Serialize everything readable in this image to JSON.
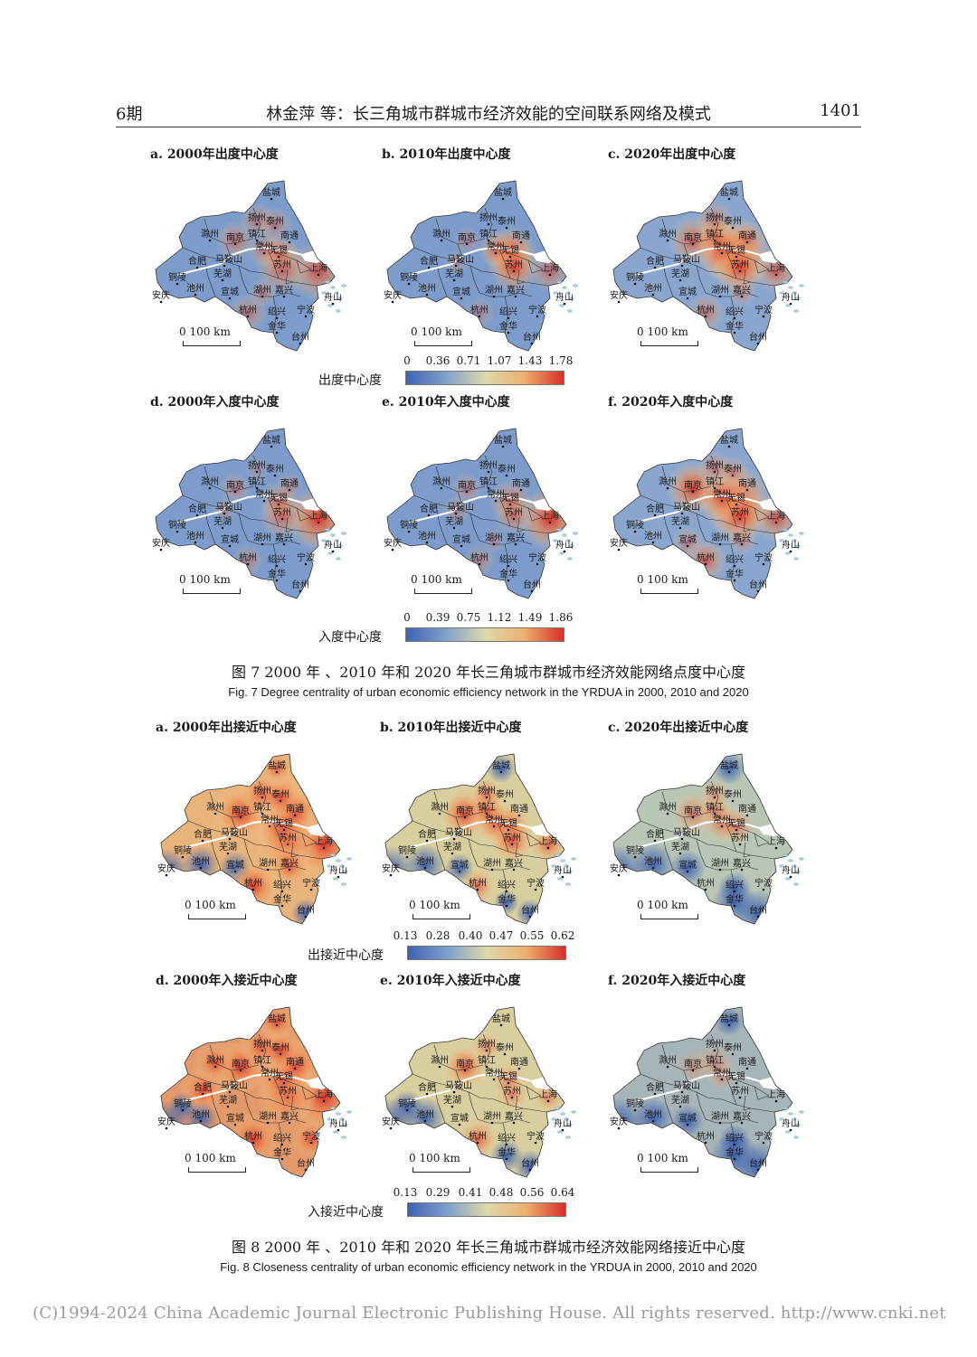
{
  "header": {
    "issue": "6期",
    "title": "林金萍 等：长三角城市群城市经济效能的空间联系网络及模式",
    "page": "1401"
  },
  "scale_label": "0   100 km",
  "cities": [
    "盐城",
    "扬州",
    "泰州",
    "滁州",
    "南京",
    "镇江",
    "南通",
    "常州",
    "无锡",
    "合肥",
    "马鞍山",
    "苏州",
    "上海",
    "铜陵",
    "芜湖",
    "池州",
    "宣城",
    "湖州",
    "嘉兴",
    "舟山",
    "安庆",
    "杭州",
    "绍兴",
    "宁波",
    "金华",
    "台州"
  ],
  "fig7": {
    "panels": [
      {
        "label": "a. 2000年出度中心度"
      },
      {
        "label": "b. 2010年出度中心度"
      },
      {
        "label": "c. 2020年出度中心度"
      },
      {
        "label": "d. 2000年入度中心度"
      },
      {
        "label": "e. 2010年入度中心度"
      },
      {
        "label": "f. 2020年入度中心度"
      }
    ],
    "legend1": {
      "title": "出度中心度",
      "ticks": [
        "0",
        "0.36",
        "0.71",
        "1.07",
        "1.43",
        "1.78"
      ]
    },
    "legend2": {
      "title": "入度中心度",
      "ticks": [
        "0",
        "0.39",
        "0.75",
        "1.12",
        "1.49",
        "1.86"
      ]
    },
    "caption_zh": "图 7   2000 年 、2010 年和 2020 年长三角城市群城市经济效能网络点度中心度",
    "caption_en": "Fig. 7   Degree centrality of urban economic efficiency network in the YRDUA in 2000, 2010 and 2020"
  },
  "fig8": {
    "panels": [
      {
        "label": "a. 2000年出接近中心度"
      },
      {
        "label": "b. 2010年出接近中心度"
      },
      {
        "label": "c. 2020年出接近中心度"
      },
      {
        "label": "d. 2000年入接近中心度"
      },
      {
        "label": "e. 2010年入接近中心度"
      },
      {
        "label": "f. 2020年入接近中心度"
      }
    ],
    "legend1": {
      "title": "出接近中心度",
      "ticks": [
        "0.13",
        "0.28",
        "0.40",
        "0.47",
        "0.55",
        "0.62"
      ]
    },
    "legend2": {
      "title": "入接近中心度",
      "ticks": [
        "0.13",
        "0.29",
        "0.41",
        "0.48",
        "0.56",
        "0.64"
      ]
    },
    "caption_zh": "图 8   2000 年 、2010 年和 2020 年长三角城市群城市经济效能网络接近中心度",
    "caption_en": "Fig. 8   Closeness centrality of urban economic efficiency network in the YRDUA in 2000, 2010 and 2020"
  },
  "colors": {
    "low": "#3f62b0",
    "mid": "#dcd9a9",
    "high": "#d62f27",
    "river": "#ffffff",
    "sea": "#a9cfe0"
  },
  "footer": "(C)1994-2024 China Academic Journal Electronic Publishing House. All rights reserved.    http://www.cnki.net"
}
